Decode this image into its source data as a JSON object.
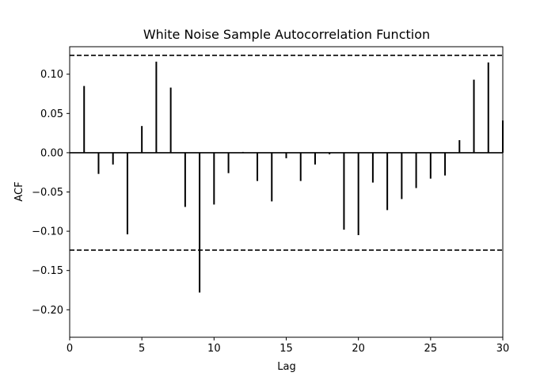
{
  "chart_data": {
    "type": "stem",
    "title": "White Noise Sample Autocorrelation Function",
    "xlabel": "Lag",
    "ylabel": "ACF",
    "xlim": [
      0,
      30
    ],
    "ylim": [
      -0.235,
      0.135
    ],
    "x_ticks": [
      0,
      5,
      10,
      15,
      20,
      25,
      30
    ],
    "x_tick_labels": [
      "0",
      "5",
      "10",
      "15",
      "20",
      "25",
      "30"
    ],
    "y_ticks": [
      -0.2,
      -0.15,
      -0.1,
      -0.05,
      0.0,
      0.05,
      0.1
    ],
    "y_tick_labels": [
      "−0.20",
      "−0.15",
      "−0.10",
      "−0.05",
      "0.00",
      "0.05",
      "0.10"
    ],
    "confidence_bounds": [
      -0.124,
      0.124
    ],
    "lags": [
      1,
      2,
      3,
      4,
      5,
      6,
      7,
      8,
      9,
      10,
      11,
      12,
      13,
      14,
      15,
      16,
      17,
      18,
      19,
      20,
      21,
      22,
      23,
      24,
      25,
      26,
      27,
      28,
      29,
      30
    ],
    "acf": [
      0.085,
      -0.027,
      -0.015,
      -0.104,
      0.034,
      0.116,
      0.083,
      -0.069,
      -0.178,
      -0.066,
      -0.026,
      0.001,
      -0.036,
      -0.062,
      -0.007,
      -0.036,
      -0.015,
      -0.002,
      -0.098,
      -0.105,
      -0.038,
      -0.073,
      -0.059,
      -0.045,
      -0.033,
      -0.029,
      0.016,
      0.093,
      0.115,
      0.041
    ],
    "grid": false,
    "colors": {
      "stems": "#000000",
      "zero_line": "#000000",
      "bounds": "#000000"
    }
  }
}
